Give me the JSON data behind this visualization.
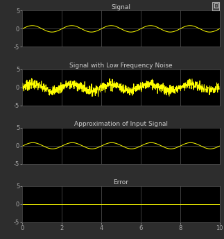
{
  "title1": "Signal",
  "title2": "Signal with Low Frequency Noise",
  "title3": "Approximation of Input Signal",
  "title4": "Error",
  "xlim": [
    0,
    10
  ],
  "ylim": [
    -5,
    5
  ],
  "yticks": [
    -5,
    0,
    5
  ],
  "xticks": [
    0,
    2,
    4,
    6,
    8,
    10
  ],
  "bg_color": "#2d2d2d",
  "ax_bg_color": "#000000",
  "line_color": "#ffff00",
  "grid_color": "#555555",
  "tick_color": "#aaaaaa",
  "title_color": "#cccccc",
  "figsize": [
    3.23,
    3.44
  ],
  "dpi": 100,
  "signal_amplitude": 0.9,
  "signal_freq": 0.5,
  "approx_amplitude": 0.85,
  "approx_freq": 0.5
}
